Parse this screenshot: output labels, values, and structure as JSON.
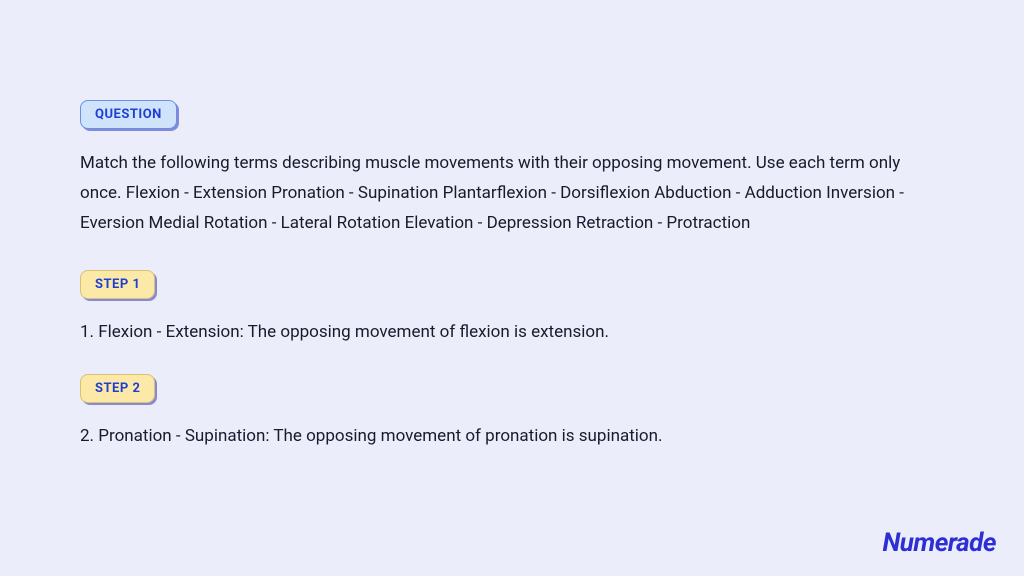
{
  "colors": {
    "background": "#ecedfa",
    "text": "#1a1a2e",
    "accent": "#1e3fd6",
    "question_badge_bg": "#cfe3fb",
    "question_badge_border": "#6b8fe8",
    "step_badge_bg": "#fce9a8",
    "step_badge_border": "#d9c270",
    "logo": "#2d2fd4"
  },
  "typography": {
    "body_fontsize": 17,
    "badge_fontsize": 13,
    "logo_fontsize": 26
  },
  "question": {
    "badge_label": "QUESTION",
    "text": "Match the following terms describing muscle movements with their opposing movement. Use each term only once. Flexion - Extension Pronation - Supination Plantarflexion - Dorsiflexion Abduction - Adduction Inversion - Eversion Medial Rotation - Lateral Rotation Elevation - Depression Retraction - Protraction"
  },
  "steps": [
    {
      "badge_label": "STEP 1",
      "text": "1. Flexion - Extension: The opposing movement of flexion is extension."
    },
    {
      "badge_label": "STEP 2",
      "text": "2. Pronation - Supination: The opposing movement of pronation is supination."
    }
  ],
  "branding": {
    "logo_text": "Numerade"
  }
}
